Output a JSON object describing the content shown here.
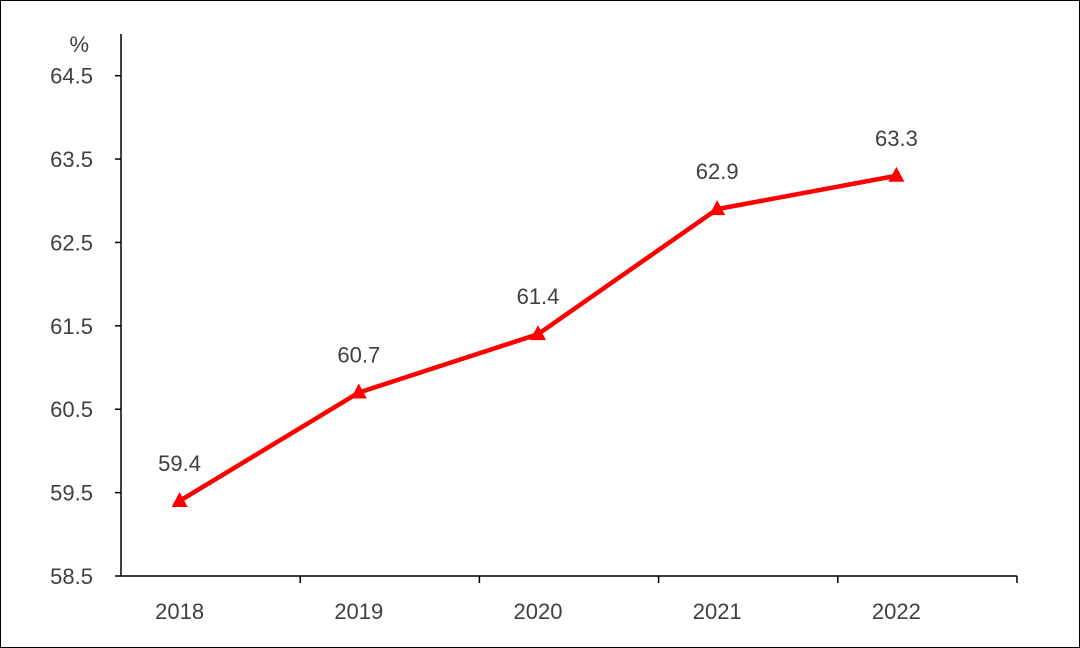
{
  "chart_data": {
    "type": "line",
    "unit_label": "%",
    "categories": [
      "2018",
      "2019",
      "2020",
      "2021",
      "2022"
    ],
    "series": [
      {
        "values": [
          59.4,
          60.7,
          61.4,
          62.9,
          63.3
        ],
        "color": "#ff0000",
        "marker": "triangle"
      }
    ],
    "data_labels": [
      "59.4",
      "60.7",
      "61.4",
      "62.9",
      "63.3"
    ],
    "ylim": [
      58.5,
      65.0
    ],
    "y_ticks": [
      58.5,
      59.5,
      60.5,
      61.5,
      62.5,
      63.5,
      64.5
    ],
    "y_tick_labels": [
      "58.5",
      "59.5",
      "60.5",
      "61.5",
      "62.5",
      "63.5",
      "64.5"
    ],
    "grid": false,
    "legend": "none"
  }
}
